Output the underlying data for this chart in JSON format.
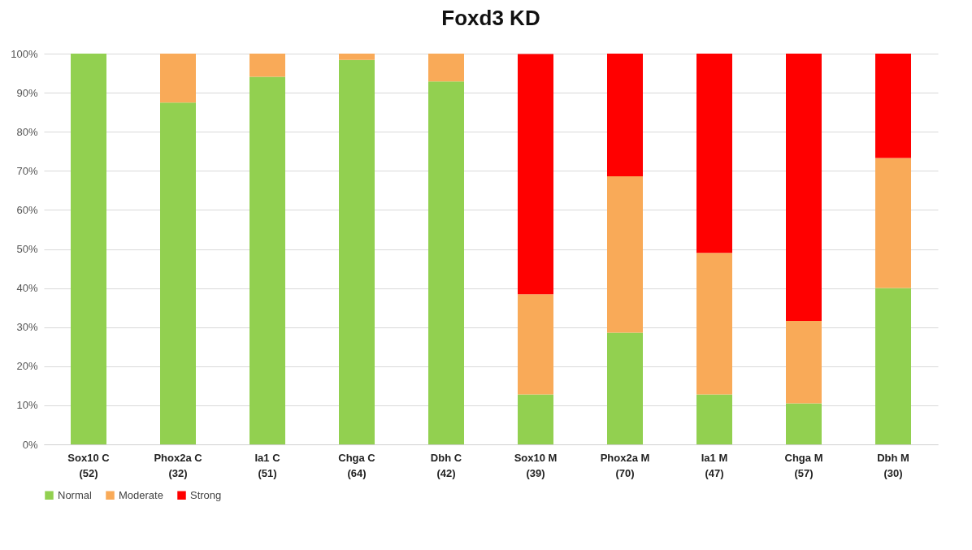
{
  "chart_data": {
    "type": "bar",
    "title": "Foxd3 KD",
    "stacked": true,
    "categories": [
      "Sox10 C\n(52)",
      "Phox2a  C\n(32)",
      "Ia1  C\n(51)",
      "Chga C\n(64)",
      "Dbh C\n(42)",
      "Sox10 M\n(39)",
      "Phox2a M\n(70)",
      "Ia1 M\n(47)",
      "Chga M\n(57)",
      "Dbh M\n(30)"
    ],
    "series": [
      {
        "name": "Normal",
        "color": "#92d050",
        "values": [
          100,
          87.5,
          94.1,
          98.4,
          92.9,
          12.8,
          28.6,
          12.8,
          10.5,
          40
        ]
      },
      {
        "name": "Moderate",
        "color": "#f9aa58",
        "values": [
          0,
          12.5,
          5.9,
          1.6,
          7.1,
          25.6,
          40,
          36.2,
          21.1,
          33.3
        ]
      },
      {
        "name": "Strong",
        "color": "#ff0000",
        "values": [
          0,
          0,
          0,
          0,
          0,
          61.5,
          31.4,
          51,
          68.4,
          26.7
        ]
      }
    ],
    "ylim": [
      0,
      100
    ],
    "yticks": [
      {
        "value": 0,
        "label": "0%"
      },
      {
        "value": 10,
        "label": "10%"
      },
      {
        "value": 20,
        "label": "20%"
      },
      {
        "value": 30,
        "label": "30%"
      },
      {
        "value": 40,
        "label": "40%"
      },
      {
        "value": 50,
        "label": "50%"
      },
      {
        "value": 60,
        "label": "60%"
      },
      {
        "value": 70,
        "label": "70%"
      },
      {
        "value": 80,
        "label": "80%"
      },
      {
        "value": 90,
        "label": "90%"
      },
      {
        "value": 100,
        "label": "100%"
      }
    ],
    "grid": "y",
    "legend": "bottom"
  }
}
